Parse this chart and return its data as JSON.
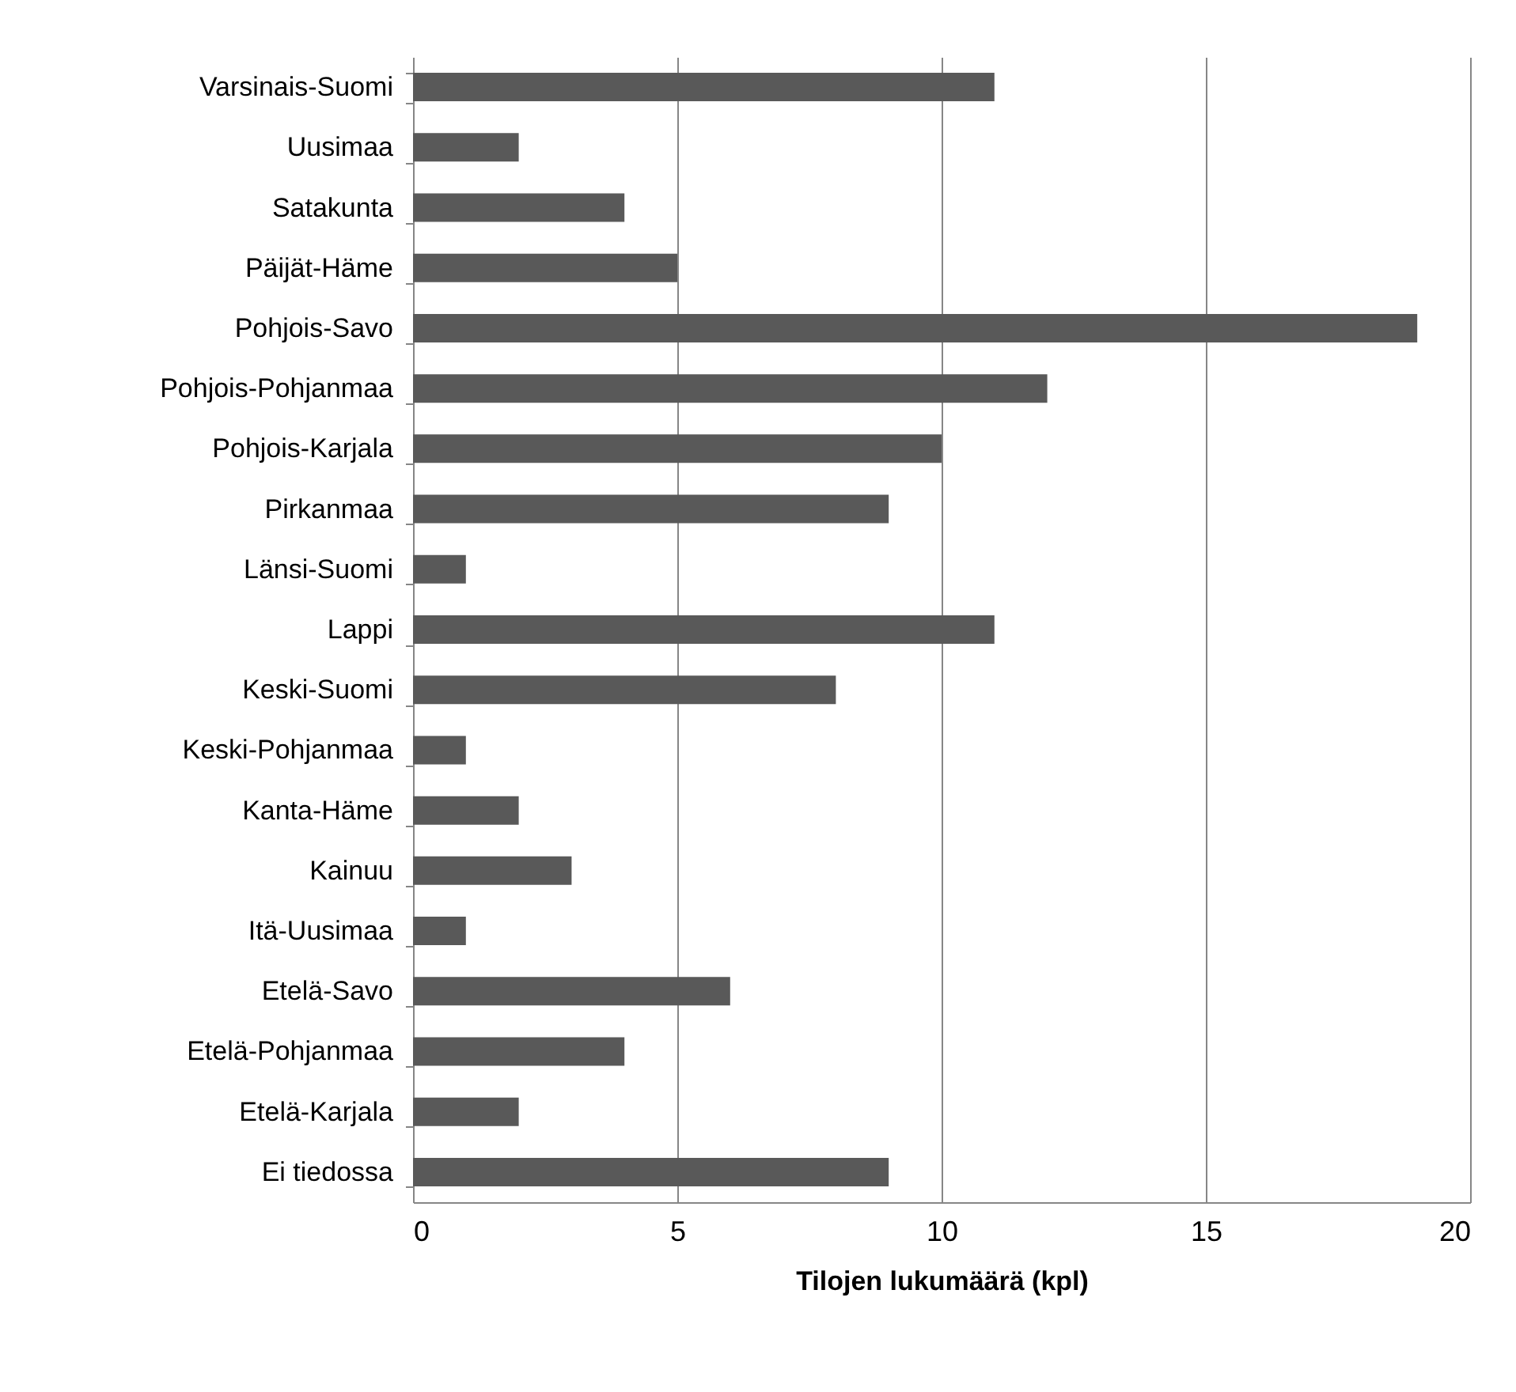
{
  "chart_data": {
    "type": "bar",
    "orientation": "horizontal",
    "categories": [
      "Varsinais-Suomi",
      "Uusimaa",
      "Satakunta",
      "Päijät-Häme",
      "Pohjois-Savo",
      "Pohjois-Pohjanmaa",
      "Pohjois-Karjala",
      "Pirkanmaa",
      "Länsi-Suomi",
      "Lappi",
      "Keski-Suomi",
      "Keski-Pohjanmaa",
      "Kanta-Häme",
      "Kainuu",
      "Itä-Uusimaa",
      "Etelä-Savo",
      "Etelä-Pohjanmaa",
      "Etelä-Karjala",
      "Ei tiedossa"
    ],
    "values": [
      11,
      2,
      4,
      5,
      19,
      12,
      10,
      9,
      1,
      11,
      8,
      1,
      2,
      3,
      1,
      6,
      4,
      2,
      9
    ],
    "color": "#595959",
    "xlabel": "Tilojen lukumäärä (kpl)",
    "xlim": [
      0,
      20
    ],
    "xticks": [
      0,
      5,
      10,
      15,
      20
    ],
    "grid": "x"
  }
}
